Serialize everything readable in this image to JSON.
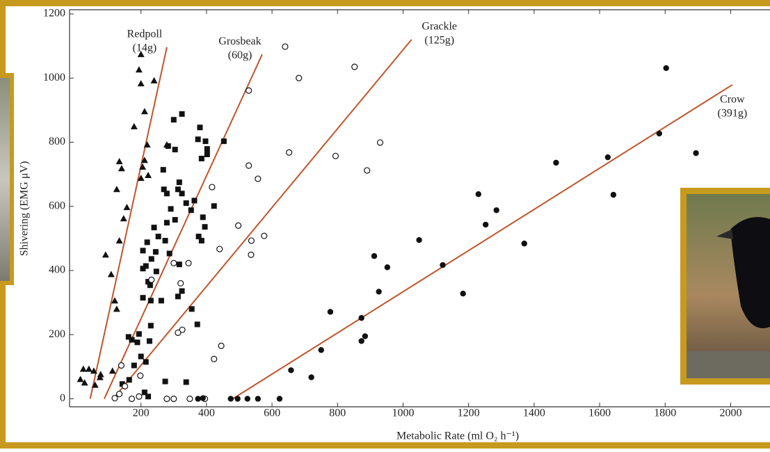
{
  "chart_data": {
    "type": "scatter",
    "x_label": "Metabolic Rate (ml O₂ h⁻¹)",
    "y_label": "Shivering (EMG μV)",
    "xlim": [
      -18,
      2120
    ],
    "ylim": [
      -25,
      1200
    ],
    "xticks": [
      200,
      400,
      600,
      800,
      1000,
      1200,
      1400,
      1600,
      1800,
      2000
    ],
    "yticks": [
      0,
      200,
      400,
      600,
      800,
      1000,
      1200
    ],
    "series": [
      {
        "marker": "triangle",
        "color": "#111111",
        "x": [
          200,
          194,
          200,
          240,
          211,
          179,
          219,
          279,
          211,
          134,
          141,
          205,
          222,
          200,
          126,
          157,
          147,
          134,
          92,
          109,
          120,
          126,
          24,
          41,
          56,
          77,
          113,
          15,
          28,
          60,
          75
        ],
        "values": [
          1074,
          1026,
          983,
          992,
          896,
          849,
          792,
          792,
          744,
          740,
          718,
          723,
          697,
          688,
          653,
          597,
          562,
          493,
          449,
          388,
          306,
          280,
          93,
          93,
          87,
          76,
          87,
          61,
          50,
          43,
          67
        ]
      },
      {
        "marker": "square",
        "color": "#111111",
        "x": [
          300,
          325,
          304,
          283,
          268,
          380,
          374,
          397,
          402,
          402,
          385,
          453,
          423,
          317,
          313,
          325,
          270,
          279,
          338,
          363,
          353,
          389,
          395,
          376,
          385,
          291,
          304,
          279,
          240,
          253,
          274,
          219,
          206,
          245,
          287,
          232,
          215,
          247,
          317,
          206,
          222,
          228,
          206,
          230,
          262,
          313,
          325,
          355,
          372,
          230,
          194,
          172,
          162,
          226,
          189,
          200,
          215,
          179,
          164,
          143,
          274,
          338,
          211,
          222
        ],
        "values": [
          870,
          888,
          777,
          788,
          714,
          846,
          809,
          803,
          779,
          762,
          749,
          803,
          601,
          675,
          653,
          640,
          653,
          640,
          610,
          618,
          588,
          566,
          536,
          506,
          493,
          592,
          558,
          549,
          534,
          506,
          493,
          488,
          462,
          458,
          453,
          436,
          414,
          397,
          419,
          406,
          365,
          354,
          315,
          306,
          306,
          319,
          336,
          280,
          232,
          228,
          202,
          184,
          193,
          180,
          176,
          132,
          115,
          104,
          59,
          46,
          54,
          52,
          20,
          7
        ]
      },
      {
        "marker": "circle",
        "color": "#111111",
        "x": [
          640,
          682,
          852,
          529,
          652,
          794,
          930,
          890,
          529,
          557,
          417,
          497,
          537,
          576,
          536,
          440,
          345,
          300,
          232,
          321,
          326,
          313,
          445,
          423,
          140,
          198,
          151,
          134,
          172,
          194,
          279,
          300,
          349,
          395,
          120
        ],
        "values": [
          1098,
          1000,
          1035,
          961,
          768,
          757,
          799,
          712,
          727,
          686,
          660,
          540,
          493,
          508,
          449,
          467,
          423,
          423,
          371,
          360,
          215,
          206,
          165,
          124,
          104,
          72,
          39,
          15,
          0,
          7,
          0,
          0,
          0,
          0,
          2
        ]
      },
      {
        "marker": "dot",
        "color": "#111111",
        "x": [
          1803,
          1782,
          1894,
          1467,
          1625,
          1642,
          1230,
          1252,
          1285,
          1370,
          1049,
          1121,
          1183,
          912,
          952,
          926,
          778,
          873,
          884,
          873,
          750,
          658,
          720,
          374,
          389,
          474,
          495,
          525,
          557,
          623
        ],
        "values": [
          1031,
          827,
          766,
          736,
          753,
          636,
          638,
          543,
          588,
          484,
          495,
          417,
          328,
          445,
          410,
          334,
          271,
          252,
          195,
          180,
          152,
          89,
          67,
          0,
          2,
          0,
          0,
          0,
          0,
          0
        ]
      }
    ],
    "fit_lines": [
      {
        "name": "Redpoll",
        "mass": "(14g)",
        "color": "#c0542a",
        "x": [
          45,
          279
        ],
        "values": [
          0,
          1096
        ]
      },
      {
        "name": "Grosbeak",
        "mass": "(60g)",
        "color": "#c0542a",
        "x": [
          88,
          570
        ],
        "values": [
          0,
          1074
        ]
      },
      {
        "name": "Grackle",
        "mass": "(125g)",
        "color": "#c0542a",
        "x": [
          115,
          1026
        ],
        "values": [
          0,
          1120
        ]
      },
      {
        "name": "Crow",
        "mass": "(391g)",
        "color": "#c0542a",
        "x": [
          480,
          2005
        ],
        "values": [
          0,
          979
        ]
      }
    ]
  }
}
